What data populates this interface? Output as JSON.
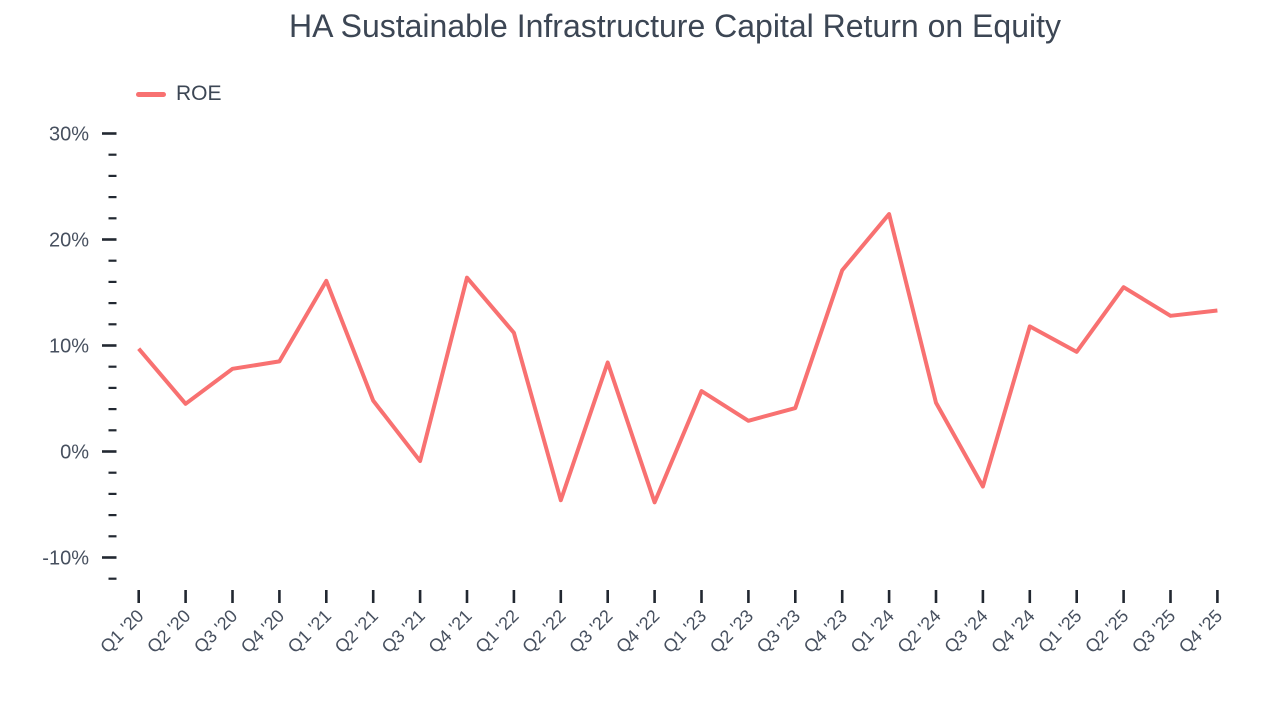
{
  "chart_data": {
    "type": "line",
    "title": "HA Sustainable Infrastructure Capital Return on Equity",
    "categories": [
      "Q1 '20",
      "Q2 '20",
      "Q3 '20",
      "Q4 '20",
      "Q1 '21",
      "Q2 '21",
      "Q3 '21",
      "Q4 '21",
      "Q1 '22",
      "Q2 '22",
      "Q3 '22",
      "Q4 '22",
      "Q1 '23",
      "Q2 '23",
      "Q3 '23",
      "Q4 '23",
      "Q1 '24",
      "Q2 '24",
      "Q3 '24",
      "Q4 '24",
      "Q1 '25",
      "Q2 '25",
      "Q3 '25",
      "Q4 '25"
    ],
    "series": [
      {
        "name": "ROE",
        "color": "#f87171",
        "values": [
          9.7,
          4.5,
          7.8,
          8.5,
          16.1,
          4.8,
          -0.9,
          16.4,
          11.2,
          -4.6,
          8.4,
          -4.8,
          5.7,
          2.9,
          4.1,
          17.1,
          22.4,
          4.6,
          -3.3,
          11.8,
          9.4,
          15.5,
          12.8,
          13.3
        ]
      }
    ],
    "xlabel": "",
    "ylabel": "",
    "unit": "%",
    "y_ticks": [
      {
        "value": 30,
        "label": "30%"
      },
      {
        "value": 20,
        "label": "20%"
      },
      {
        "value": 10,
        "label": "10%"
      },
      {
        "value": 0,
        "label": "0%"
      },
      {
        "value": -10,
        "label": "-10%"
      }
    ],
    "y_minor_tick_step": 2,
    "ylim": [
      -12,
      30
    ],
    "x_tick_count": 24,
    "legend_position": "top-left",
    "grid": false
  }
}
